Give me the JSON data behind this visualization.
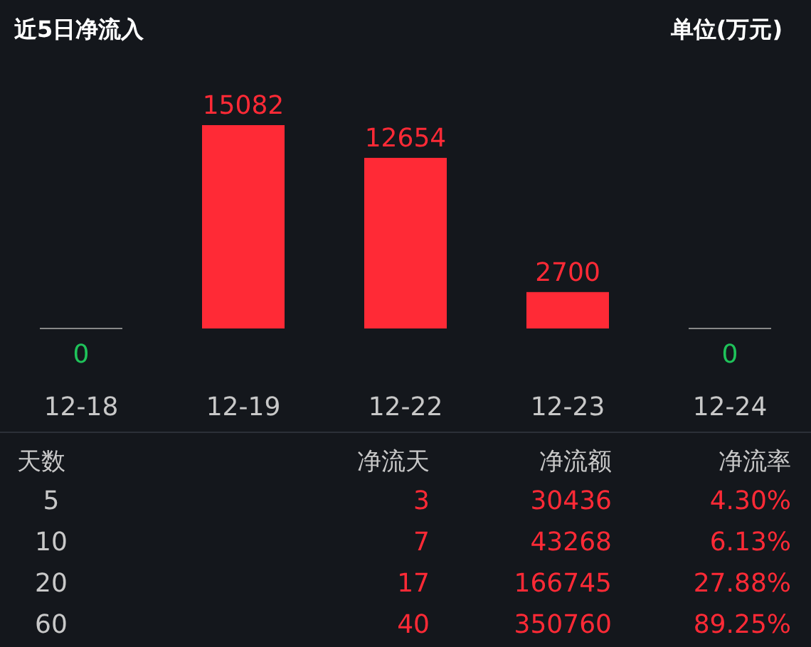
{
  "chart_data": [
    {
      "type": "bar",
      "title": "近5日净流入",
      "subtitle": "单位(万元)",
      "categories": [
        "12-18",
        "12-19",
        "12-22",
        "12-23",
        "12-24"
      ],
      "values": [
        0,
        15082,
        12654,
        2700,
        0
      ],
      "color": "#ff2a36",
      "colors": [
        "#888888",
        "#ff2a36",
        "#ff2a36",
        "#ff2a36",
        "#888888"
      ],
      "data_labels": true
    },
    {
      "type": "other",
      "annotations": [
        "天数",
        "净流天",
        "净流额",
        "净流率",
        "5",
        "3",
        "30436",
        "4.30%",
        "10",
        "7",
        "43268",
        "6.13%",
        "20",
        "17",
        "166745",
        "27.88%",
        "60",
        "40",
        "350760",
        "89.25%"
      ]
    }
  ]
}
